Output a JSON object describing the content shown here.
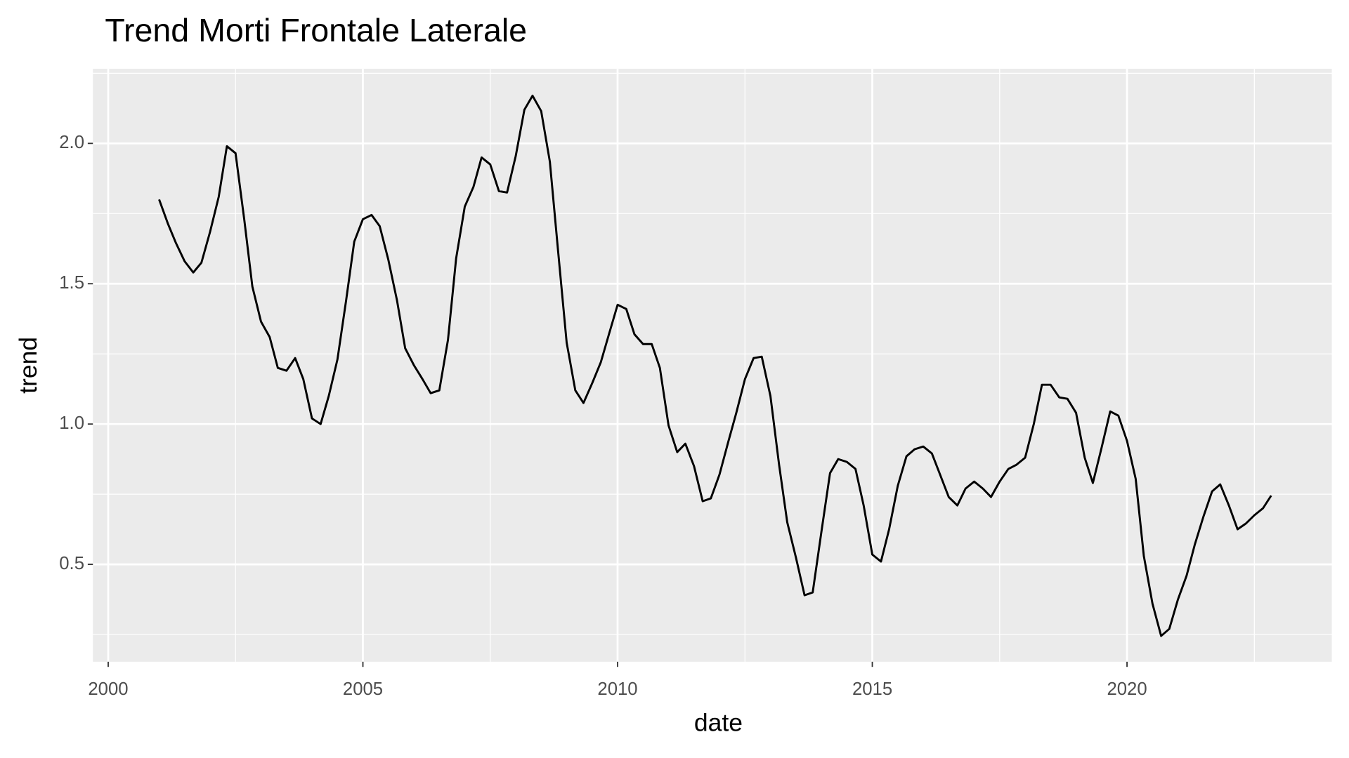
{
  "chart_data": {
    "type": "line",
    "title": "Trend Morti Frontale Laterale",
    "x_label": "date",
    "y_label": "trend",
    "color": "#000000",
    "background": "#ebebeb",
    "grid": true,
    "xlim": [
      1999.7,
      2024.02
    ],
    "ylim": [
      0.153,
      2.266
    ],
    "xticks": [
      2000,
      2005,
      2010,
      2015,
      2020
    ],
    "yticks": [
      0.5,
      {
        "value": 1,
        "label": "1.0"
      },
      1.5,
      {
        "value": 2,
        "label": "2.0"
      }
    ],
    "x": [
      2001.0,
      2001.17,
      2001.33,
      2001.5,
      2001.67,
      2001.83,
      2002.0,
      2002.17,
      2002.33,
      2002.5,
      2002.67,
      2002.83,
      2003.0,
      2003.17,
      2003.33,
      2003.5,
      2003.67,
      2003.83,
      2004.0,
      2004.17,
      2004.33,
      2004.5,
      2004.67,
      2004.83,
      2005.0,
      2005.17,
      2005.33,
      2005.5,
      2005.67,
      2005.83,
      2006.0,
      2006.17,
      2006.33,
      2006.5,
      2006.67,
      2006.83,
      2007.0,
      2007.17,
      2007.33,
      2007.5,
      2007.67,
      2007.83,
      2008.0,
      2008.17,
      2008.33,
      2008.5,
      2008.67,
      2008.83,
      2009.0,
      2009.17,
      2009.33,
      2009.5,
      2009.67,
      2009.83,
      2010.0,
      2010.17,
      2010.33,
      2010.5,
      2010.67,
      2010.83,
      2011.0,
      2011.17,
      2011.33,
      2011.5,
      2011.67,
      2011.83,
      2012.0,
      2012.17,
      2012.33,
      2012.5,
      2012.67,
      2012.83,
      2013.0,
      2013.17,
      2013.33,
      2013.5,
      2013.67,
      2013.83,
      2014.0,
      2014.17,
      2014.33,
      2014.5,
      2014.67,
      2014.83,
      2015.0,
      2015.17,
      2015.33,
      2015.5,
      2015.67,
      2015.83,
      2016.0,
      2016.17,
      2016.33,
      2016.5,
      2016.67,
      2016.83,
      2017.0,
      2017.17,
      2017.33,
      2017.5,
      2017.67,
      2017.83,
      2018.0,
      2018.17,
      2018.33,
      2018.5,
      2018.67,
      2018.83,
      2019.0,
      2019.17,
      2019.33,
      2019.5,
      2019.67,
      2019.83,
      2020.0,
      2020.17,
      2020.33,
      2020.5,
      2020.67,
      2020.83,
      2021.0,
      2021.17,
      2021.33,
      2021.5,
      2021.67,
      2021.83,
      2022.0,
      2022.17,
      2022.33,
      2022.5,
      2022.67,
      2022.83
    ],
    "values": [
      1.8,
      1.715,
      1.645,
      1.58,
      1.54,
      1.575,
      1.685,
      1.81,
      1.99,
      1.965,
      1.73,
      1.49,
      1.365,
      1.31,
      1.2,
      1.19,
      1.235,
      1.16,
      1.02,
      1.0,
      1.1,
      1.23,
      1.44,
      1.65,
      1.73,
      1.745,
      1.705,
      1.585,
      1.44,
      1.27,
      1.21,
      1.16,
      1.11,
      1.12,
      1.3,
      1.59,
      1.775,
      1.845,
      1.95,
      1.925,
      1.83,
      1.825,
      1.955,
      2.12,
      2.17,
      2.115,
      1.935,
      1.62,
      1.29,
      1.12,
      1.075,
      1.145,
      1.22,
      1.32,
      1.425,
      1.41,
      1.32,
      1.285,
      1.285,
      1.2,
      0.995,
      0.9,
      0.93,
      0.85,
      0.725,
      0.735,
      0.82,
      0.935,
      1.04,
      1.16,
      1.235,
      1.24,
      1.1,
      0.855,
      0.65,
      0.525,
      0.39,
      0.4,
      0.615,
      0.825,
      0.875,
      0.865,
      0.84,
      0.71,
      0.535,
      0.51,
      0.625,
      0.78,
      0.885,
      0.91,
      0.92,
      0.895,
      0.82,
      0.74,
      0.71,
      0.77,
      0.795,
      0.77,
      0.74,
      0.795,
      0.84,
      0.855,
      0.88,
      1.0,
      1.14,
      1.14,
      1.095,
      1.09,
      1.04,
      0.88,
      0.79,
      0.915,
      1.045,
      1.03,
      0.94,
      0.805,
      0.53,
      0.36,
      0.245,
      0.27,
      0.375,
      0.46,
      0.57,
      0.67,
      0.76,
      0.785,
      0.71,
      0.625,
      0.645,
      0.675,
      0.7,
      0.745
    ]
  }
}
